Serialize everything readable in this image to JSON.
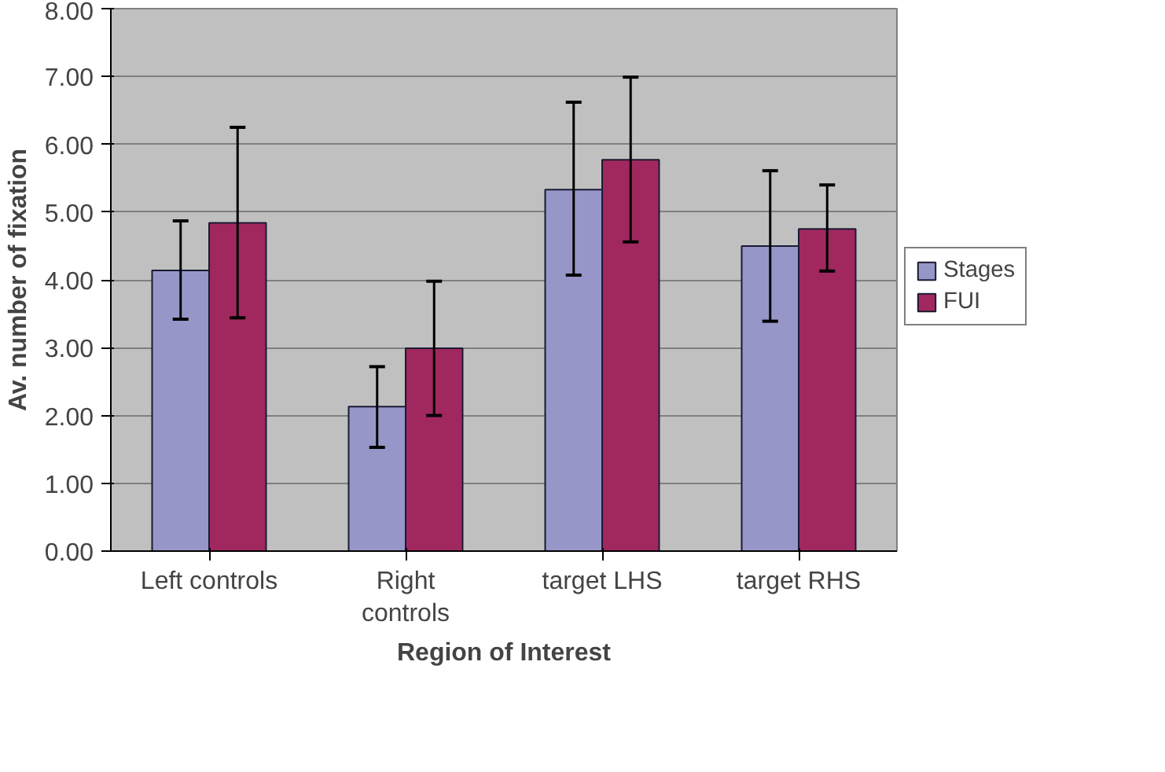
{
  "chart_data": {
    "type": "bar",
    "xlabel": "Region of Interest",
    "ylabel": "Av. number of fixation",
    "categories": [
      "Left controls",
      "Right\ncontrols",
      "target LHS",
      "target RHS"
    ],
    "series": [
      {
        "name": "Stages",
        "color": "#9696c8",
        "values": [
          4.14,
          2.13,
          5.33,
          4.5
        ],
        "errors": [
          [
            3.42,
            4.87
          ],
          [
            1.53,
            2.72
          ],
          [
            4.07,
            6.62
          ],
          [
            3.39,
            5.61
          ]
        ]
      },
      {
        "name": "FUI",
        "color": "#a0285f",
        "values": [
          4.84,
          2.99,
          5.77,
          4.75
        ],
        "errors": [
          [
            3.44,
            6.25
          ],
          [
            2.0,
            3.98
          ],
          [
            4.56,
            6.99
          ],
          [
            4.13,
            5.4
          ]
        ]
      }
    ],
    "ylim": [
      0,
      8
    ],
    "yticks": [
      {
        "value": 0,
        "label": "0.00"
      },
      {
        "value": 1,
        "label": "1.00"
      },
      {
        "value": 2,
        "label": "2.00"
      },
      {
        "value": 3,
        "label": "3.00"
      },
      {
        "value": 4,
        "label": "4.00"
      },
      {
        "value": 5,
        "label": "5.00"
      },
      {
        "value": 6,
        "label": "6.00"
      },
      {
        "value": 7,
        "label": "7.00"
      },
      {
        "value": 8,
        "label": "8.00"
      }
    ],
    "grid": "y",
    "legend": "right"
  }
}
